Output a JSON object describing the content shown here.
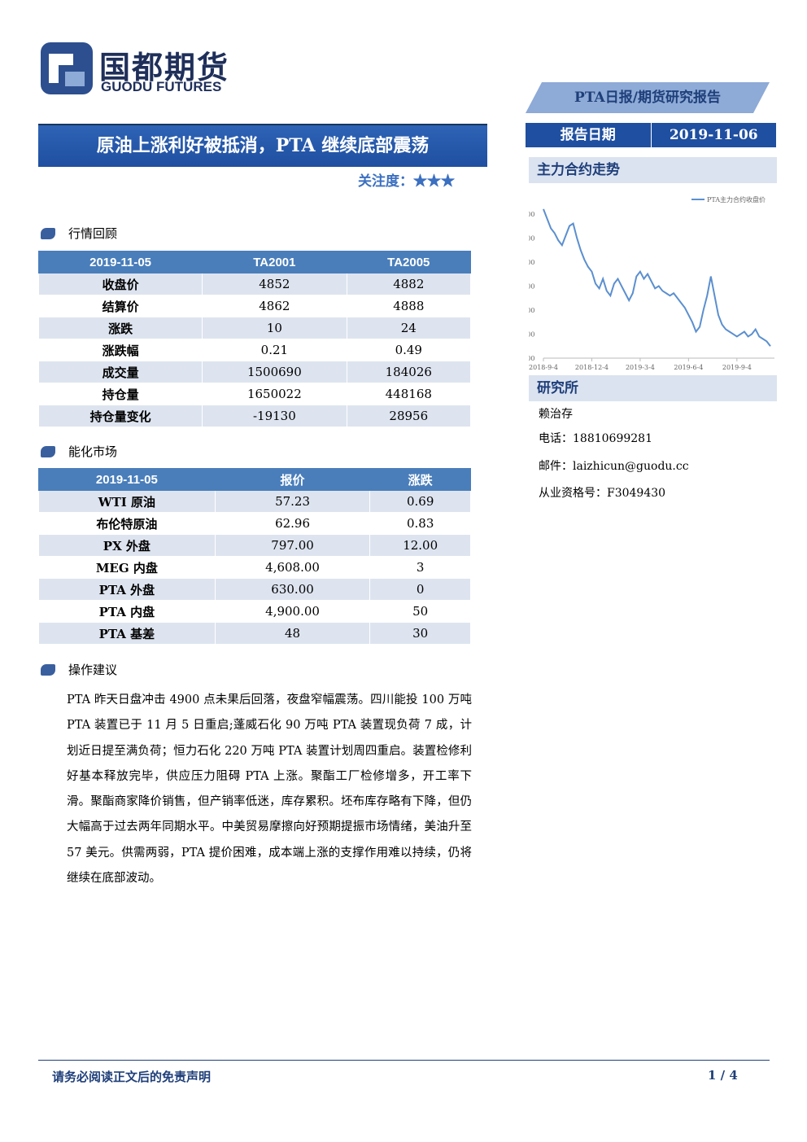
{
  "header": {
    "logo_cn": "国都期货",
    "logo_en": "GUODU FUTURES",
    "report_type": "PTA日报/期货研究报告",
    "title": "原油上涨利好被抵消，PTA 继续底部震荡",
    "attention_label": "关注度：",
    "attention_stars": "★★★",
    "date_label": "报告日期",
    "date": "2019-11-06"
  },
  "sections": {
    "market": "行情回顾",
    "energy": "能化市场",
    "advice": "操作建议",
    "trend": "主力合约走势",
    "research": "研究所"
  },
  "table1": {
    "header": [
      "2019-11-05",
      "TA2001",
      "TA2005"
    ],
    "rows": [
      [
        "收盘价",
        "4852",
        "4882"
      ],
      [
        "结算价",
        "4862",
        "4888"
      ],
      [
        "涨跌",
        "10",
        "24"
      ],
      [
        "涨跌幅",
        "0.21",
        "0.49"
      ],
      [
        "成交量",
        "1500690",
        "184026"
      ],
      [
        "持仓量",
        "1650022",
        "448168"
      ],
      [
        "持仓量变化",
        "-19130",
        "28956"
      ]
    ]
  },
  "table2": {
    "header": [
      "2019-11-05",
      "报价",
      "涨跌"
    ],
    "rows": [
      [
        "WTI 原油",
        "57.23",
        "0.69"
      ],
      [
        "布伦特原油",
        "62.96",
        "0.83"
      ],
      [
        "PX 外盘",
        "797.00",
        "12.00"
      ],
      [
        "MEG 内盘",
        "4,608.00",
        "3"
      ],
      [
        "PTA 外盘",
        "630.00",
        "0"
      ],
      [
        "PTA 内盘",
        "4,900.00",
        "50"
      ],
      [
        "PTA 基差",
        "48",
        "30"
      ]
    ]
  },
  "advice": "PTA 昨天日盘冲击 4900 点未果后回落，夜盘窄幅震荡。四川能投 100 万吨 PTA 装置已于 11 月 5 日重启;蓬威石化 90 万吨 PTA 装置现负荷 7 成，计划近日提至满负荷；恒力石化 220 万吨 PTA 装置计划周四重启。装置检修利好基本释放完毕，供应压力阻碍 PTA 上涨。聚酯工厂检修增多，开工率下滑。聚酯商家降价销售，但产销率低迷，库存累积。坯布库存略有下降，但仍大幅高于过去两年同期水平。中美贸易摩擦向好预期提振市场情绪，美油升至 57 美元。供需两弱，PTA 提价困难，成本端上涨的支撑作用难以持续，仍将继续在底部波动。",
  "contact": {
    "name": "赖治存",
    "phone": "电话：18810699281",
    "email": "邮件：laizhicun@guodu.cc",
    "license": "从业资格号：F3049430"
  },
  "footer": {
    "disclaimer": "请务必阅读正文后的免责声明",
    "page": "1 / 4"
  },
  "chart_data": {
    "type": "line",
    "categories": [
      "2018-9-4",
      null,
      null,
      null,
      null,
      null,
      null,
      null,
      null,
      null,
      null,
      null,
      null,
      "2018-12-4",
      null,
      null,
      null,
      null,
      null,
      null,
      null,
      null,
      null,
      null,
      null,
      null,
      "2019-3-4",
      null,
      null,
      null,
      null,
      null,
      null,
      null,
      null,
      null,
      null,
      null,
      null,
      "2019-6-4",
      null,
      null,
      null,
      null,
      null,
      null,
      null,
      null,
      null,
      null,
      null,
      null,
      "2019-9-4",
      null,
      null,
      null,
      null,
      null,
      null,
      null,
      null,
      null
    ],
    "series": [
      {
        "name": "PTA主力合约收盘价",
        "color": "#5b8fcf",
        "values": [
          7700,
          7500,
          7300,
          7200,
          7050,
          6950,
          7150,
          7350,
          7400,
          7100,
          6850,
          6650,
          6500,
          6400,
          6150,
          6050,
          6250,
          6000,
          5900,
          6150,
          6250,
          6100,
          5950,
          5800,
          5950,
          6300,
          6400,
          6250,
          6350,
          6200,
          6050,
          6100,
          6000,
          5950,
          5900,
          5950,
          5850,
          5750,
          5650,
          5500,
          5350,
          5150,
          5250,
          5600,
          5900,
          6300,
          5900,
          5500,
          5300,
          5200,
          5150,
          5100,
          5050,
          5100,
          5150,
          5050,
          5100,
          5200,
          5050,
          5000,
          4950,
          4850
        ]
      }
    ],
    "ylim": [
      4600,
      7800
    ],
    "yticks": [
      {
        "value": 4600,
        "label": "4,600"
      },
      {
        "value": 5100,
        "label": "5,100"
      },
      {
        "value": 5600,
        "label": "5,600"
      },
      {
        "value": 6100,
        "label": "6,100"
      },
      {
        "value": 6600,
        "label": "6,600"
      },
      {
        "value": 7100,
        "label": "7,100"
      },
      {
        "value": 7600,
        "label": "7,600"
      }
    ],
    "legend": "top-right"
  }
}
